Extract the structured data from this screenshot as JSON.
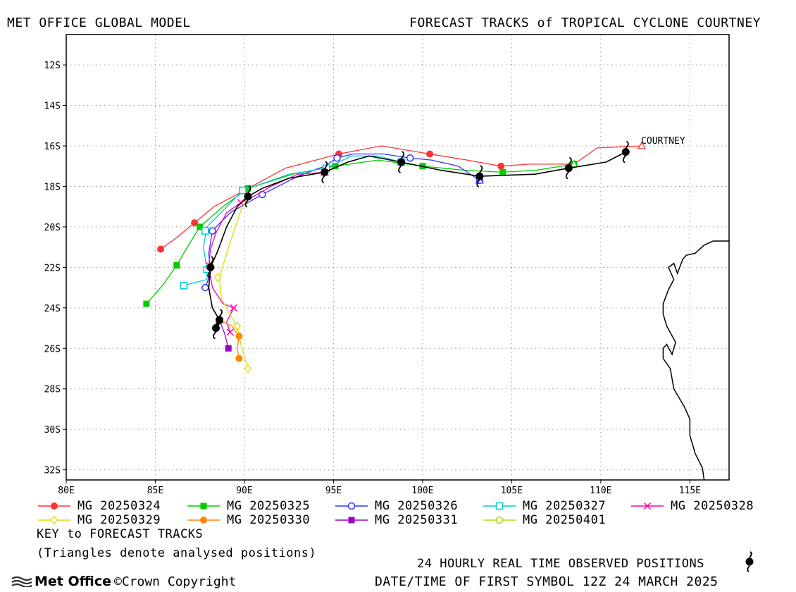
{
  "header": {
    "left": "MET OFFICE GLOBAL MODEL",
    "right": "FORECAST TRACKS of TROPICAL CYCLONE COURTNEY"
  },
  "chart_data": {
    "type": "line",
    "title": "FORECAST TRACKS of TROPICAL CYCLONE COURTNEY",
    "xlim": [
      80,
      117.2
    ],
    "ylim": [
      -32.5,
      -10.5
    ],
    "x_ticks": [
      "80E",
      "85E",
      "90E",
      "95E",
      "100E",
      "105E",
      "110E",
      "115E"
    ],
    "x_tick_values": [
      80,
      85,
      90,
      95,
      100,
      105,
      110,
      115
    ],
    "y_ticks": [
      "12S",
      "14S",
      "16S",
      "18S",
      "20S",
      "22S",
      "24S",
      "26S",
      "28S",
      "30S",
      "32S"
    ],
    "y_tick_values": [
      -12,
      -14,
      -16,
      -18,
      -20,
      -22,
      -24,
      -26,
      -28,
      -30,
      -32
    ],
    "grid": true,
    "storm_label": "COURTNEY",
    "observed": {
      "color": "#000000",
      "track": [
        [
          111.4,
          -16.3
        ],
        [
          110.3,
          -16.8
        ],
        [
          108.2,
          -17.1
        ],
        [
          106.3,
          -17.4
        ],
        [
          103.2,
          -17.5
        ],
        [
          101.0,
          -17.2
        ],
        [
          98.8,
          -16.8
        ],
        [
          97.0,
          -16.5
        ],
        [
          95.8,
          -16.8
        ],
        [
          94.5,
          -17.3
        ],
        [
          92.5,
          -17.6
        ],
        [
          91.0,
          -18.1
        ],
        [
          90.2,
          -18.5
        ],
        [
          89.6,
          -19.0
        ],
        [
          89.0,
          -20.0
        ],
        [
          88.5,
          -21.2
        ],
        [
          88.1,
          -22.0
        ],
        [
          88.0,
          -23.0
        ],
        [
          88.2,
          -24.0
        ],
        [
          88.6,
          -24.6
        ],
        [
          88.4,
          -25.0
        ]
      ],
      "symbols": [
        [
          111.4,
          -16.3
        ],
        [
          108.2,
          -17.1
        ],
        [
          103.2,
          -17.5
        ],
        [
          98.8,
          -16.8
        ],
        [
          94.5,
          -17.3
        ],
        [
          90.2,
          -18.5
        ],
        [
          88.1,
          -22.0
        ],
        [
          88.6,
          -24.6
        ],
        [
          88.4,
          -25.0
        ]
      ]
    },
    "series": [
      {
        "name": "MG 20250324",
        "color": "#ff3333",
        "marker": "filled-circle",
        "points": [
          [
            112.3,
            -16.0
          ],
          [
            109.8,
            -16.1
          ],
          [
            108.5,
            -16.9
          ],
          [
            106.0,
            -16.9
          ],
          [
            104.4,
            -17.0
          ],
          [
            102.5,
            -16.7
          ],
          [
            100.4,
            -16.4
          ],
          [
            97.7,
            -16.0
          ],
          [
            95.3,
            -16.4
          ],
          [
            92.3,
            -17.1
          ],
          [
            90.0,
            -18.2
          ],
          [
            88.3,
            -19.0
          ],
          [
            87.2,
            -19.8
          ],
          [
            86.1,
            -20.6
          ],
          [
            85.3,
            -21.1
          ]
        ],
        "symbol_points": [
          [
            108.5,
            -16.9
          ],
          [
            104.4,
            -17.0
          ],
          [
            100.4,
            -16.4
          ],
          [
            95.3,
            -16.4
          ],
          [
            90.0,
            -18.2
          ],
          [
            87.2,
            -19.8
          ],
          [
            85.3,
            -21.1
          ]
        ]
      },
      {
        "name": "MG 20250325",
        "color": "#00cc00",
        "marker": "filled-square",
        "points": [
          [
            108.5,
            -16.9
          ],
          [
            106.4,
            -17.2
          ],
          [
            104.5,
            -17.3
          ],
          [
            102.3,
            -17.2
          ],
          [
            100.0,
            -17.0
          ],
          [
            97.5,
            -16.7
          ],
          [
            95.1,
            -17.0
          ],
          [
            92.7,
            -17.4
          ],
          [
            90.2,
            -18.1
          ],
          [
            88.8,
            -19.0
          ],
          [
            87.5,
            -20.0
          ],
          [
            86.8,
            -21.0
          ],
          [
            86.2,
            -21.9
          ],
          [
            85.4,
            -22.9
          ],
          [
            84.5,
            -23.8
          ]
        ],
        "symbol_points": [
          [
            108.5,
            -16.9
          ],
          [
            104.5,
            -17.3
          ],
          [
            100.0,
            -17.0
          ],
          [
            95.1,
            -17.0
          ],
          [
            90.2,
            -18.1
          ],
          [
            87.5,
            -20.0
          ],
          [
            86.2,
            -21.9
          ],
          [
            84.5,
            -23.8
          ]
        ]
      },
      {
        "name": "MG 20250326",
        "color": "#3333ff",
        "marker": "open-circle",
        "points": [
          [
            103.2,
            -17.7
          ],
          [
            102.0,
            -17.0
          ],
          [
            100.5,
            -16.7
          ],
          [
            99.3,
            -16.6
          ],
          [
            97.8,
            -16.4
          ],
          [
            96.1,
            -16.4
          ],
          [
            95.2,
            -16.6
          ],
          [
            94.5,
            -17.0
          ],
          [
            93.0,
            -17.5
          ],
          [
            91.0,
            -18.4
          ],
          [
            90.2,
            -18.8
          ],
          [
            89.2,
            -19.3
          ],
          [
            88.2,
            -20.2
          ],
          [
            88.0,
            -21.3
          ],
          [
            88.1,
            -22.3
          ],
          [
            87.8,
            -23.0
          ]
        ],
        "symbol_points": [
          [
            103.2,
            -17.7
          ],
          [
            99.3,
            -16.6
          ],
          [
            95.2,
            -16.6
          ],
          [
            91.0,
            -18.4
          ],
          [
            88.2,
            -20.2
          ],
          [
            87.8,
            -23.0
          ]
        ]
      },
      {
        "name": "MG 20250327",
        "color": "#00cccc",
        "marker": "open-square",
        "points": [
          [
            98.8,
            -16.8
          ],
          [
            97.5,
            -16.5
          ],
          [
            96.0,
            -16.5
          ],
          [
            94.6,
            -17.1
          ],
          [
            92.5,
            -17.4
          ],
          [
            89.9,
            -18.2
          ],
          [
            88.8,
            -19.2
          ],
          [
            87.9,
            -20.0
          ],
          [
            87.7,
            -21.0
          ],
          [
            87.9,
            -22.1
          ],
          [
            87.9,
            -22.6
          ],
          [
            87.0,
            -22.8
          ],
          [
            86.6,
            -22.9
          ]
        ],
        "symbol_points": [
          [
            98.8,
            -16.8
          ],
          [
            94.6,
            -17.1
          ],
          [
            89.9,
            -18.2
          ],
          [
            87.8,
            -20.2
          ],
          [
            87.9,
            -22.1
          ],
          [
            86.6,
            -22.9
          ]
        ]
      },
      {
        "name": "MG 20250328",
        "color": "#ff00aa",
        "marker": "cross",
        "points": [
          [
            94.5,
            -17.3
          ],
          [
            93.0,
            -17.4
          ],
          [
            91.5,
            -18.0
          ],
          [
            90.3,
            -18.6
          ],
          [
            89.8,
            -18.8
          ],
          [
            89.0,
            -19.3
          ],
          [
            88.4,
            -20.3
          ],
          [
            88.1,
            -21.1
          ],
          [
            88.0,
            -21.9
          ],
          [
            88.2,
            -23.0
          ],
          [
            88.8,
            -23.8
          ],
          [
            89.4,
            -24.0
          ],
          [
            89.0,
            -24.7
          ],
          [
            89.2,
            -25.2
          ]
        ],
        "symbol_points": [
          [
            94.5,
            -17.3
          ],
          [
            89.8,
            -18.8
          ],
          [
            88.0,
            -21.9
          ],
          [
            89.4,
            -24.0
          ],
          [
            89.2,
            -25.2
          ]
        ]
      },
      {
        "name": "MG 20250329",
        "color": "#dddd00",
        "marker": "open-diamond",
        "points": [
          [
            90.2,
            -18.5
          ],
          [
            89.8,
            -19.2
          ],
          [
            89.3,
            -20.5
          ],
          [
            88.9,
            -21.6
          ],
          [
            88.6,
            -22.5
          ],
          [
            88.7,
            -23.5
          ],
          [
            89.1,
            -24.2
          ],
          [
            89.6,
            -24.9
          ],
          [
            89.8,
            -25.8
          ],
          [
            90.2,
            -27.0
          ]
        ],
        "symbol_points": [
          [
            88.5,
            -22.5
          ],
          [
            89.6,
            -24.9
          ],
          [
            90.2,
            -27.0
          ]
        ]
      },
      {
        "name": "MG 20250330",
        "color": "#ff8800",
        "marker": "filled-circle",
        "points": [
          [
            88.6,
            -24.6
          ],
          [
            89.3,
            -24.9
          ],
          [
            89.7,
            -25.4
          ],
          [
            89.6,
            -26.0
          ],
          [
            89.7,
            -26.5
          ]
        ],
        "symbol_points": [
          [
            89.7,
            -25.4
          ],
          [
            89.7,
            -26.5
          ]
        ]
      },
      {
        "name": "MG 20250331",
        "color": "#9900cc",
        "marker": "filled-square",
        "points": [
          [
            88.6,
            -24.6
          ],
          [
            88.9,
            -25.3
          ],
          [
            89.1,
            -26.0
          ]
        ],
        "symbol_points": [
          [
            89.1,
            -26.0
          ]
        ]
      },
      {
        "name": "MG 20250401",
        "color": "#aadd00",
        "marker": "open-circle",
        "points": [
          [
            88.6,
            -24.6
          ],
          [
            88.4,
            -25.0
          ]
        ],
        "symbol_points": []
      }
    ],
    "analysed_triangles": [
      {
        "color": "#ff3333",
        "pos": [
          112.3,
          -16.0
        ]
      },
      {
        "color": "#00cc00",
        "pos": [
          108.5,
          -16.9
        ]
      },
      {
        "color": "#3333ff",
        "pos": [
          103.2,
          -17.7
        ]
      },
      {
        "color": "#00cccc",
        "pos": [
          98.8,
          -16.8
        ]
      },
      {
        "color": "#ff00aa",
        "pos": [
          94.5,
          -17.3
        ]
      },
      {
        "color": "#dddd00",
        "pos": [
          90.2,
          -18.5
        ]
      },
      {
        "color": "#ff8800",
        "pos": [
          88.6,
          -24.6
        ]
      },
      {
        "color": "#9900cc",
        "pos": [
          88.6,
          -24.6
        ]
      },
      {
        "color": "#aadd00",
        "pos": [
          88.6,
          -24.6
        ]
      }
    ],
    "coastline": [
      [
        117.2,
        -20.7
      ],
      [
        116.3,
        -20.7
      ],
      [
        115.8,
        -20.9
      ],
      [
        115.3,
        -21.3
      ],
      [
        114.8,
        -21.4
      ],
      [
        114.6,
        -21.6
      ],
      [
        114.3,
        -22.3
      ],
      [
        114.1,
        -21.8
      ],
      [
        113.8,
        -22.0
      ],
      [
        114.1,
        -22.6
      ],
      [
        113.8,
        -23.1
      ],
      [
        113.5,
        -23.8
      ],
      [
        113.5,
        -24.3
      ],
      [
        113.7,
        -24.9
      ],
      [
        114.2,
        -25.7
      ],
      [
        114.0,
        -26.3
      ],
      [
        113.7,
        -25.8
      ],
      [
        113.5,
        -26.0
      ],
      [
        113.5,
        -26.5
      ],
      [
        113.9,
        -27.0
      ],
      [
        114.1,
        -28.0
      ],
      [
        114.7,
        -28.9
      ],
      [
        115.0,
        -29.5
      ],
      [
        115.0,
        -30.3
      ],
      [
        115.3,
        -31.2
      ],
      [
        115.7,
        -31.9
      ],
      [
        115.8,
        -32.5
      ]
    ]
  },
  "legend": {
    "items": [
      {
        "label": "MG 20250324"
      },
      {
        "label": "MG 20250325"
      },
      {
        "label": "MG 20250326"
      },
      {
        "label": "MG 20250327"
      },
      {
        "label": "MG 20250328"
      },
      {
        "label": "MG 20250329"
      },
      {
        "label": "MG 20250330"
      },
      {
        "label": "MG 20250331"
      },
      {
        "label": "MG 20250401"
      }
    ],
    "key_title": "KEY to FORECAST TRACKS",
    "key_note": "(Triangles denote analysed positions)"
  },
  "footer": {
    "observed_note": "24 HOURLY REAL TIME OBSERVED POSITIONS",
    "first_symbol": "DATE/TIME OF FIRST SYMBOL 12Z 24 MARCH 2025",
    "logo_text": "Met Office",
    "copyright": "©Crown Copyright"
  }
}
